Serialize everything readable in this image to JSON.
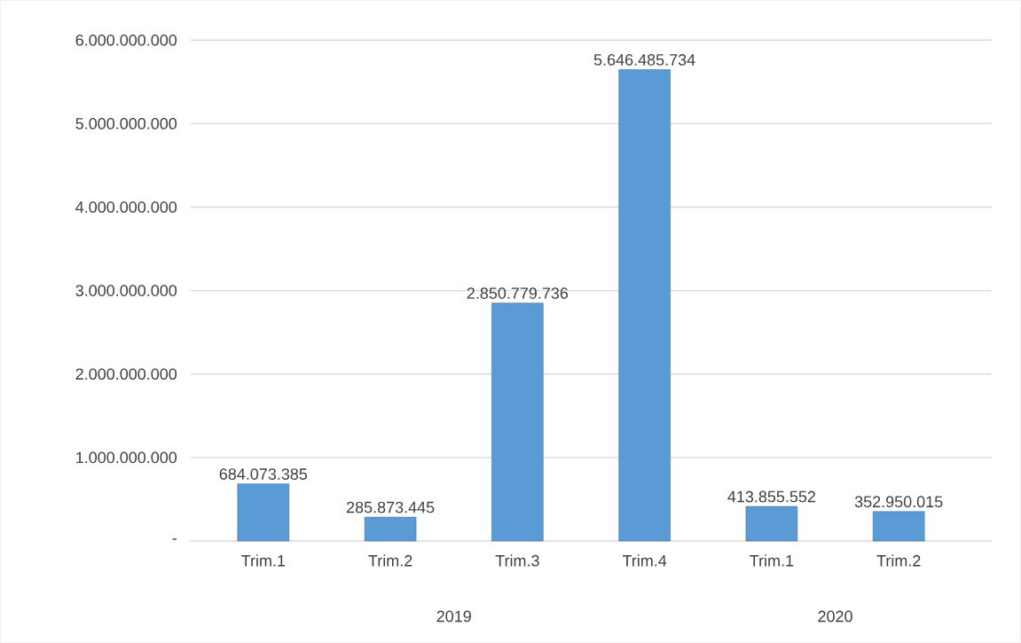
{
  "chart_data": {
    "type": "bar",
    "categories": [
      "Trim.1",
      "Trim.2",
      "Trim.3",
      "Trim.4",
      "Trim.1",
      "Trim.2"
    ],
    "values": [
      684073385,
      285873445,
      2850779736,
      5646485734,
      413855552,
      352950015
    ],
    "value_labels": [
      "684.073.385",
      "285.873.445",
      "2.850.779.736",
      "5.646.485.734",
      "413.855.552",
      "352.950.015"
    ],
    "color": "#5b9bd5",
    "ylim": [
      0,
      6000000000
    ],
    "yticks": [
      {
        "value": 0,
        "label": "-"
      },
      {
        "value": 1000000000,
        "label": "1.000.000.000"
      },
      {
        "value": 2000000000,
        "label": "2.000.000.000"
      },
      {
        "value": 3000000000,
        "label": "3.000.000.000"
      },
      {
        "value": 4000000000,
        "label": "4.000.000.000"
      },
      {
        "value": 5000000000,
        "label": "5.000.000.000"
      },
      {
        "value": 6000000000,
        "label": "6.000.000.000"
      }
    ],
    "grid": "y",
    "annotations": [
      "2019",
      "2020"
    ]
  }
}
